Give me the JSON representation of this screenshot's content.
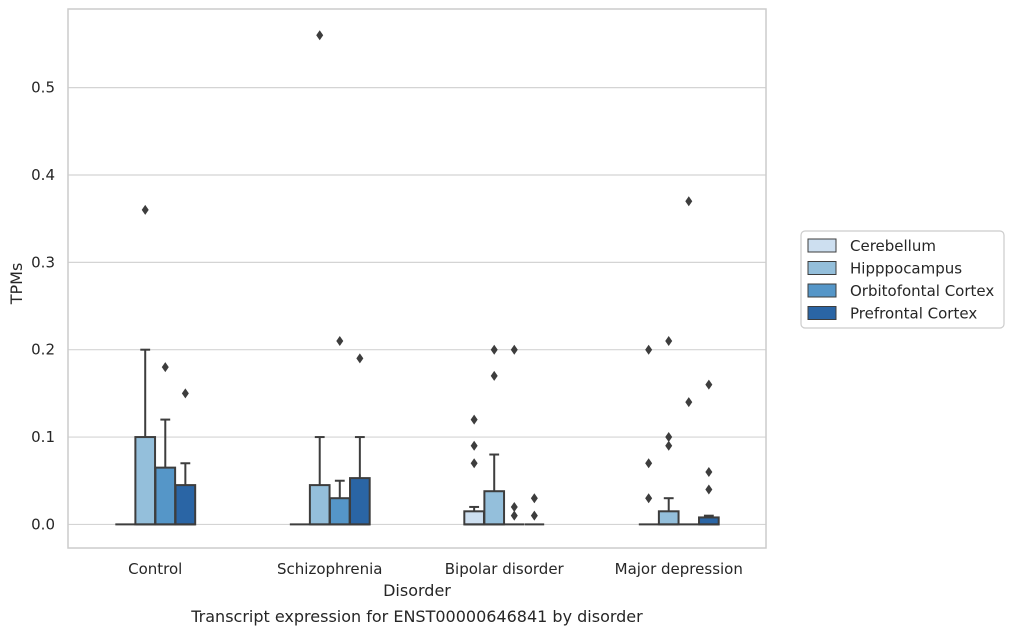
{
  "chart_data": {
    "type": "box",
    "title": "",
    "caption": "Transcript expression for ENST00000646841 by disorder",
    "xlabel": "Disorder",
    "ylabel": "TPMs",
    "ylim": [
      -0.027,
      0.59
    ],
    "yticks": [
      "0.0",
      "0.1",
      "0.2",
      "0.3",
      "0.4",
      "0.5"
    ],
    "grid": "horizontal",
    "legend_position": "right",
    "categories": [
      "Control",
      "Schizophrenia",
      "Bipolar disorder",
      "Major depression"
    ],
    "series": [
      {
        "name": "Cerebellum",
        "color": "#cddff0",
        "boxes": [
          {
            "q1": 0,
            "median": 0,
            "q3": 0,
            "whisker_low": 0,
            "whisker_high": 0,
            "outliers": []
          },
          {
            "q1": 0,
            "median": 0,
            "q3": 0,
            "whisker_low": 0,
            "whisker_high": 0,
            "outliers": []
          },
          {
            "q1": 0,
            "median": 0,
            "q3": 0.015,
            "whisker_low": 0,
            "whisker_high": 0.02,
            "outliers": [
              0.07,
              0.09,
              0.12
            ]
          },
          {
            "q1": 0,
            "median": 0,
            "q3": 0,
            "whisker_low": 0,
            "whisker_high": 0,
            "outliers": [
              0.03,
              0.07,
              0.2
            ]
          }
        ]
      },
      {
        "name": "Hipppocampus",
        "color": "#94bfdb",
        "boxes": [
          {
            "q1": 0,
            "median": 0,
            "q3": 0.1,
            "whisker_low": 0,
            "whisker_high": 0.2,
            "outliers": [
              0.36
            ]
          },
          {
            "q1": 0,
            "median": 0,
            "q3": 0.045,
            "whisker_low": 0,
            "whisker_high": 0.1,
            "outliers": [
              0.56
            ]
          },
          {
            "q1": 0,
            "median": 0,
            "q3": 0.038,
            "whisker_low": 0,
            "whisker_high": 0.08,
            "outliers": [
              0.17,
              0.2
            ]
          },
          {
            "q1": 0,
            "median": 0,
            "q3": 0.015,
            "whisker_low": 0,
            "whisker_high": 0.03,
            "outliers": [
              0.09,
              0.1,
              0.21
            ]
          }
        ]
      },
      {
        "name": "Orbitofontal Cortex",
        "color": "#5596c8",
        "boxes": [
          {
            "q1": 0,
            "median": 0,
            "q3": 0.065,
            "whisker_low": 0,
            "whisker_high": 0.12,
            "outliers": [
              0.18
            ]
          },
          {
            "q1": 0,
            "median": 0,
            "q3": 0.03,
            "whisker_low": 0,
            "whisker_high": 0.05,
            "outliers": [
              0.21
            ]
          },
          {
            "q1": 0,
            "median": 0,
            "q3": 0,
            "whisker_low": 0,
            "whisker_high": 0,
            "outliers": [
              0.01,
              0.02,
              0.2
            ]
          },
          {
            "q1": 0,
            "median": 0,
            "q3": 0,
            "whisker_low": 0,
            "whisker_high": 0,
            "outliers": [
              0.14,
              0.37
            ]
          }
        ]
      },
      {
        "name": "Prefrontal Cortex",
        "color": "#2a65a5",
        "boxes": [
          {
            "q1": 0,
            "median": 0,
            "q3": 0.045,
            "whisker_low": 0,
            "whisker_high": 0.07,
            "outliers": [
              0.15
            ]
          },
          {
            "q1": 0,
            "median": 0,
            "q3": 0.053,
            "whisker_low": 0,
            "whisker_high": 0.1,
            "outliers": [
              0.19
            ]
          },
          {
            "q1": 0,
            "median": 0,
            "q3": 0,
            "whisker_low": 0,
            "whisker_high": 0,
            "outliers": [
              0.01,
              0.03
            ]
          },
          {
            "q1": 0,
            "median": 0,
            "q3": 0.008,
            "whisker_low": 0,
            "whisker_high": 0.01,
            "outliers": [
              0.04,
              0.06,
              0.16
            ]
          }
        ]
      }
    ],
    "colors": {
      "grid": "#d4d4d4",
      "frame": "#cccccc",
      "edge": "#3d3d3d",
      "text": "#262626"
    }
  }
}
